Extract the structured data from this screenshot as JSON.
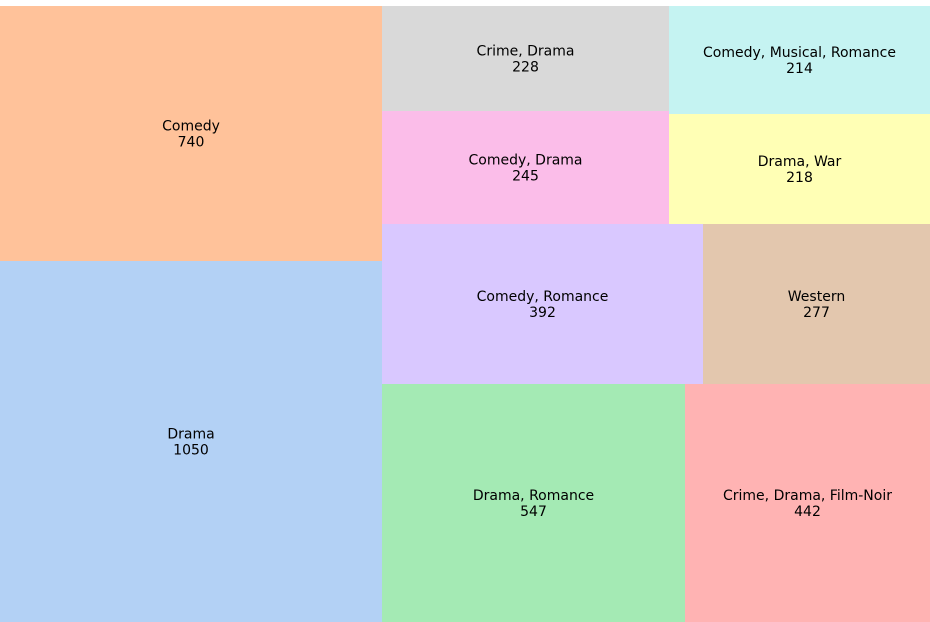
{
  "chart_data": {
    "type": "treemap",
    "title": "",
    "items": [
      {
        "label": "Drama",
        "value": 1050,
        "color": "#b3d1f5"
      },
      {
        "label": "Comedy",
        "value": 740,
        "color": "#ffc29a"
      },
      {
        "label": "Drama, Romance",
        "value": 547,
        "color": "#a4eab4"
      },
      {
        "label": "Crime, Drama, Film-Noir",
        "value": 442,
        "color": "#ffb3b3"
      },
      {
        "label": "Comedy, Romance",
        "value": 392,
        "color": "#d9c8ff"
      },
      {
        "label": "Western",
        "value": 277,
        "color": "#e3c7ae"
      },
      {
        "label": "Comedy, Drama",
        "value": 245,
        "color": "#fbbde9"
      },
      {
        "label": "Crime, Drama",
        "value": 228,
        "color": "#d9d9d9"
      },
      {
        "label": "Drama, War",
        "value": 218,
        "color": "#ffffb5"
      },
      {
        "label": "Comedy, Musical, Romance",
        "value": 214,
        "color": "#c5f3f2"
      }
    ]
  }
}
